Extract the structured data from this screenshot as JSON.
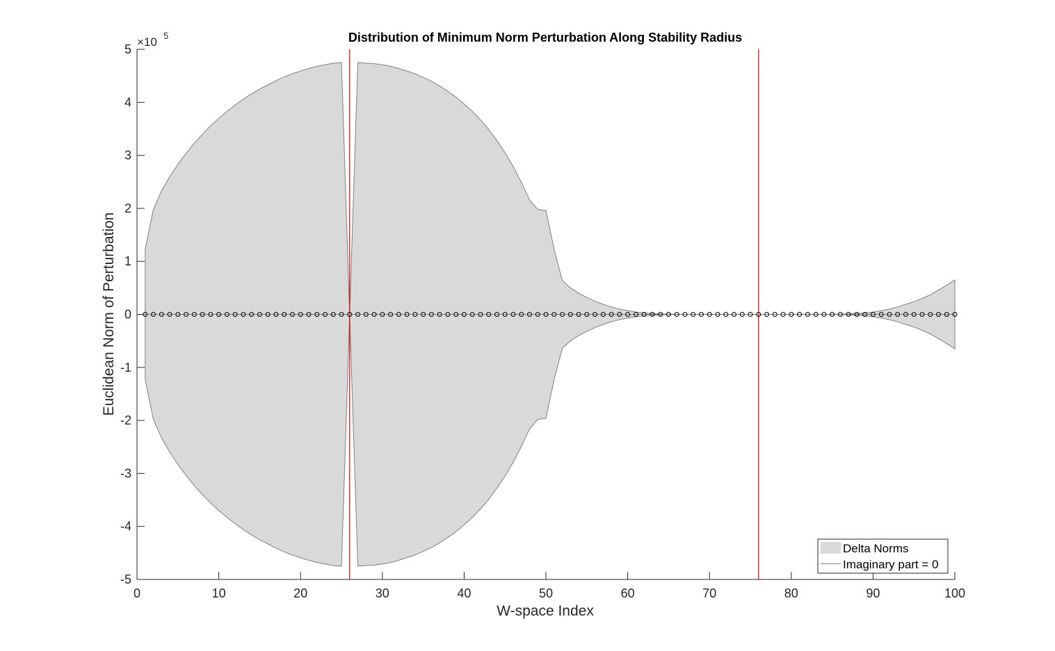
{
  "chart_data": {
    "type": "area",
    "title": "Distribution of Minimum Norm Perturbation Along Stability Radius",
    "xlabel": "W-space Index",
    "ylabel": "Euclidean Norm of Perturbation",
    "xlim": [
      0,
      100
    ],
    "ylim": [
      -500000,
      500000
    ],
    "xticks": [
      0,
      10,
      20,
      30,
      40,
      50,
      60,
      70,
      80,
      90,
      100
    ],
    "yticks": [
      -500000,
      -400000,
      -300000,
      -200000,
      -100000,
      0,
      100000,
      200000,
      300000,
      400000,
      500000
    ],
    "ytick_labels": [
      "-5",
      "-4",
      "-3",
      "-2",
      "-1",
      "0",
      "1",
      "2",
      "3",
      "4",
      "5"
    ],
    "y_multiplier": {
      "base": "×10",
      "exponent": "5"
    },
    "grid": false,
    "legend_position": "bottom-right",
    "series": [
      {
        "name": "Delta Norms",
        "kind": "symmetric-fill",
        "color": "#d9d9d9",
        "edge_color": "#808080",
        "x": [
          1,
          2,
          3,
          4,
          5,
          6,
          7,
          8,
          9,
          10,
          11,
          12,
          13,
          14,
          15,
          16,
          17,
          18,
          19,
          20,
          21,
          22,
          23,
          24,
          25,
          26,
          27,
          28,
          29,
          30,
          31,
          32,
          33,
          34,
          35,
          36,
          37,
          38,
          39,
          40,
          41,
          42,
          43,
          44,
          45,
          46,
          47,
          48,
          49,
          50,
          51,
          52,
          53,
          54,
          55,
          56,
          57,
          58,
          59,
          60,
          61,
          62,
          63,
          64,
          65,
          66,
          67,
          68,
          69,
          70,
          71,
          72,
          73,
          74,
          75,
          76,
          77,
          78,
          79,
          80,
          81,
          82,
          83,
          84,
          85,
          86,
          87,
          88,
          89,
          90,
          91,
          92,
          93,
          94,
          95,
          96,
          97,
          98,
          99,
          100
        ],
        "values": [
          123000,
          198000,
          233000,
          260000,
          283000,
          304000,
          323000,
          340000,
          356000,
          370000,
          383000,
          395000,
          406000,
          416000,
          425000,
          433000,
          441000,
          448000,
          454000,
          459000,
          464000,
          468000,
          471000,
          474000,
          475000,
          0,
          475000,
          474000,
          473000,
          471000,
          468000,
          464000,
          459000,
          454000,
          447000,
          440000,
          431000,
          421000,
          410000,
          397000,
          383000,
          367000,
          349000,
          328000,
          305000,
          279000,
          249000,
          216000,
          198000,
          196000,
          123000,
          64000,
          50000,
          40000,
          32000,
          25000,
          19000,
          14000,
          10000,
          7000,
          4500,
          2800,
          1600,
          900,
          500,
          300,
          200,
          150,
          120,
          100,
          90,
          85,
          80,
          80,
          80,
          0,
          80,
          80,
          85,
          90,
          100,
          120,
          150,
          200,
          300,
          500,
          900,
          1600,
          2800,
          4500,
          7000,
          10000,
          14000,
          19000,
          24000,
          30000,
          37000,
          46000,
          55000,
          65000
        ]
      },
      {
        "name": "Imaginary part = 0",
        "kind": "line-markers",
        "color": "#808080",
        "marker_color": "#000000",
        "marker": "circle",
        "x": [
          1,
          2,
          3,
          4,
          5,
          6,
          7,
          8,
          9,
          10,
          11,
          12,
          13,
          14,
          15,
          16,
          17,
          18,
          19,
          20,
          21,
          22,
          23,
          24,
          25,
          26,
          27,
          28,
          29,
          30,
          31,
          32,
          33,
          34,
          35,
          36,
          37,
          38,
          39,
          40,
          41,
          42,
          43,
          44,
          45,
          46,
          47,
          48,
          49,
          50,
          51,
          52,
          53,
          54,
          55,
          56,
          57,
          58,
          59,
          60,
          61,
          62,
          63,
          64,
          65,
          66,
          67,
          68,
          69,
          70,
          71,
          72,
          73,
          74,
          75,
          76,
          77,
          78,
          79,
          80,
          81,
          82,
          83,
          84,
          85,
          86,
          87,
          88,
          89,
          90,
          91,
          92,
          93,
          94,
          95,
          96,
          97,
          98,
          99,
          100
        ],
        "y_constant": 0
      }
    ],
    "vertical_lines": [
      {
        "x": 26,
        "color": "#e00000"
      },
      {
        "x": 76,
        "color": "#e00000"
      }
    ],
    "legend": [
      {
        "label": "Delta Norms",
        "swatch": "patch"
      },
      {
        "label": "Imaginary part = 0",
        "swatch": "line"
      }
    ]
  }
}
